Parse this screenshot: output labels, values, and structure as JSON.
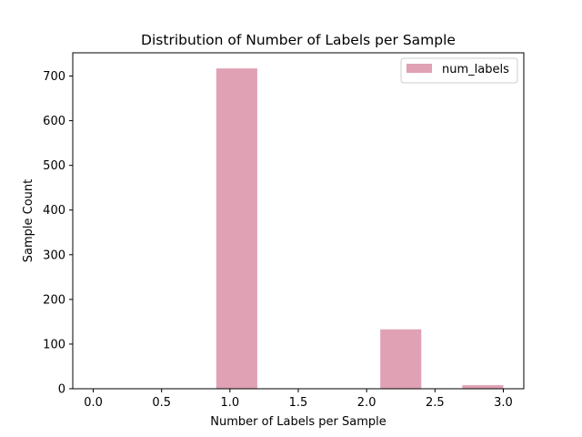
{
  "chart_data": {
    "type": "bar",
    "title": "Distribution of Number of Labels per Sample",
    "xlabel": "Number of Labels per Sample",
    "ylabel": "Sample Count",
    "xlim": [
      -0.15,
      3.15
    ],
    "ylim": [
      0,
      752
    ],
    "xticks": [
      0.0,
      0.5,
      1.0,
      1.5,
      2.0,
      2.5,
      3.0
    ],
    "xtick_labels": [
      "0.0",
      "0.5",
      "1.0",
      "1.5",
      "2.0",
      "2.5",
      "3.0"
    ],
    "yticks": [
      0,
      100,
      200,
      300,
      400,
      500,
      600,
      700
    ],
    "ytick_labels": [
      "0",
      "100",
      "200",
      "300",
      "400",
      "500",
      "600",
      "700"
    ],
    "grid": false,
    "legend_position": "top-right",
    "series": [
      {
        "name": "num_labels",
        "color": "#dfa1b3",
        "bins": [
          {
            "x0": 0.0,
            "x1": 0.3,
            "count": 0
          },
          {
            "x0": 0.3,
            "x1": 0.6,
            "count": 0
          },
          {
            "x0": 0.6,
            "x1": 0.9,
            "count": 0
          },
          {
            "x0": 0.9,
            "x1": 1.2,
            "count": 717
          },
          {
            "x0": 1.2,
            "x1": 1.5,
            "count": 0
          },
          {
            "x0": 1.5,
            "x1": 1.8,
            "count": 0
          },
          {
            "x0": 1.8,
            "x1": 2.1,
            "count": 0
          },
          {
            "x0": 2.1,
            "x1": 2.4,
            "count": 133
          },
          {
            "x0": 2.4,
            "x1": 2.7,
            "count": 0
          },
          {
            "x0": 2.7,
            "x1": 3.0,
            "count": 8
          }
        ]
      }
    ]
  }
}
